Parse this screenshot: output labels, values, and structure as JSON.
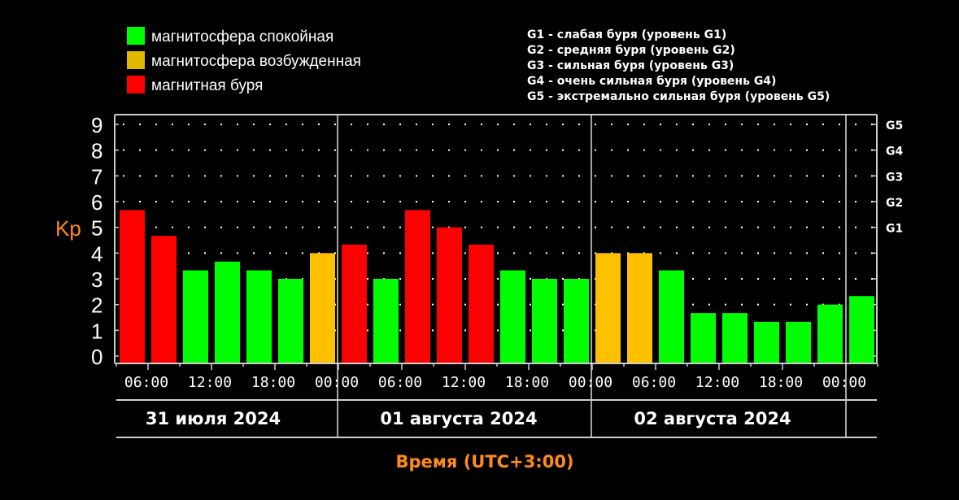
{
  "legend": {
    "items": [
      {
        "label": "магнитосфера спокойная",
        "color": "#00ff00"
      },
      {
        "label": "магнитосфера возбужденная",
        "color": "#ffc000"
      },
      {
        "label": "магнитная буря",
        "color": "#ff0000"
      }
    ],
    "storm_levels": [
      "G1 - слабая буря (уровень G1)",
      "G2 - средняя буря (уровень G2)",
      "G3 - сильная буря (уровень G3)",
      "G4 - очень сильная буря (уровень G4)",
      "G5 - экстремально сильная буря (уровень G5)"
    ]
  },
  "chart_data": {
    "type": "bar",
    "title": "",
    "ylabel": "Kp",
    "xlabel": "Время (UTC+3:00)",
    "ylim": [
      0,
      9
    ],
    "yticks": [
      "0",
      "1",
      "2",
      "3",
      "4",
      "5",
      "6",
      "7",
      "8",
      "9"
    ],
    "right_ticks": [
      {
        "value": 5,
        "label": "G1"
      },
      {
        "value": 6,
        "label": "G2"
      },
      {
        "value": 7,
        "label": "G3"
      },
      {
        "value": 8,
        "label": "G4"
      },
      {
        "value": 9,
        "label": "G5"
      }
    ],
    "xticks": [
      "06:00",
      "12:00",
      "18:00",
      "00:00",
      "06:00",
      "12:00",
      "18:00",
      "00:00",
      "06:00",
      "12:00",
      "18:00",
      "00:00"
    ],
    "days": [
      "31 июля 2024",
      "01 августа 2024",
      "02 августа 2024"
    ],
    "grid": "dotted",
    "values": [
      5.67,
      4.67,
      3.33,
      3.67,
      3.33,
      3.0,
      4.0,
      4.33,
      3.0,
      5.67,
      5.0,
      4.33,
      3.33,
      3.0,
      3.0,
      4.0,
      4.0,
      3.33,
      1.67,
      1.67,
      1.33,
      1.33,
      2.0,
      2.33
    ],
    "levels": [
      "storm",
      "storm",
      "quiet",
      "quiet",
      "quiet",
      "quiet",
      "active",
      "storm",
      "quiet",
      "storm",
      "storm",
      "storm",
      "quiet",
      "quiet",
      "quiet",
      "active",
      "active",
      "quiet",
      "quiet",
      "quiet",
      "quiet",
      "quiet",
      "quiet",
      "quiet"
    ],
    "level_colors": {
      "quiet": "#00ff00",
      "active": "#ffc000",
      "storm": "#ff0000"
    }
  }
}
